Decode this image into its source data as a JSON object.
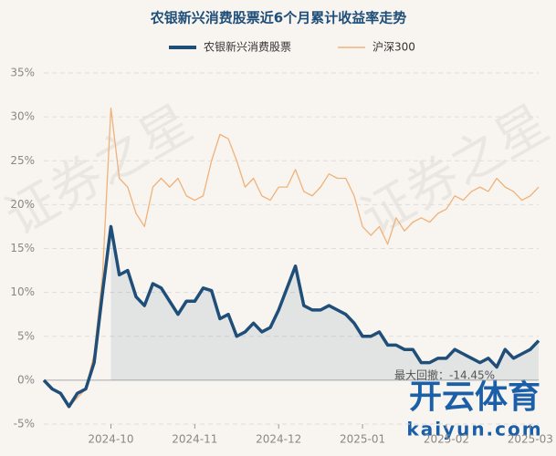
{
  "chart_data": {
    "type": "line",
    "title": "农银新兴消费股票近6个月累计收益率走势",
    "categories": [
      null,
      null,
      null,
      null,
      null,
      null,
      null,
      null,
      "2024-10",
      null,
      null,
      null,
      null,
      null,
      null,
      null,
      null,
      null,
      "2024-11",
      null,
      null,
      null,
      null,
      null,
      null,
      null,
      null,
      null,
      "2024-12",
      null,
      null,
      null,
      null,
      null,
      null,
      null,
      null,
      null,
      "2025-01",
      null,
      null,
      null,
      null,
      null,
      null,
      null,
      null,
      null,
      "2025-02",
      null,
      null,
      null,
      null,
      null,
      null,
      null,
      null,
      null,
      "2025-03",
      null
    ],
    "series": [
      {
        "name": "农银新兴消费股票",
        "color": "#1f4e79",
        "values": [
          0,
          -1,
          -1.5,
          -3,
          -1.5,
          -1,
          2,
          10,
          17.5,
          12,
          12.5,
          9.5,
          8.5,
          11,
          10.5,
          9,
          7.5,
          9,
          9,
          10.5,
          10.2,
          7,
          7.5,
          5,
          5.5,
          6.5,
          5.5,
          6,
          8,
          10.5,
          13,
          8.5,
          8,
          8,
          8.5,
          8,
          7.5,
          6.5,
          5,
          5,
          5.5,
          4,
          4,
          3.5,
          3.5,
          2,
          2,
          2.5,
          2.5,
          3.5,
          3,
          2.5,
          2,
          2.5,
          1.5,
          3.5,
          2.5,
          3,
          3.5,
          4.5
        ]
      },
      {
        "name": "沪深300",
        "color": "#f0b27a",
        "values": [
          0,
          -1,
          -1.5,
          -3,
          -2,
          -1,
          3,
          12,
          31,
          23,
          22,
          19,
          17.5,
          22,
          23,
          22,
          23,
          21,
          20.5,
          21,
          25,
          28,
          27.5,
          25,
          22,
          23,
          21,
          20.5,
          22,
          22,
          24,
          21.5,
          21,
          22,
          23.5,
          23,
          23,
          21,
          17.5,
          16.5,
          17.5,
          15.5,
          18.5,
          17,
          18,
          18.5,
          18,
          19,
          19.5,
          21,
          20.5,
          21.5,
          22,
          21.5,
          23,
          22,
          21.5,
          20.5,
          21,
          22
        ]
      }
    ],
    "ylim": [
      -5,
      35
    ],
    "yticks": [
      {
        "value": -5,
        "label": "-5%"
      },
      {
        "value": 0,
        "label": "0%"
      },
      {
        "value": 5,
        "label": "5%"
      },
      {
        "value": 10,
        "label": "10%"
      },
      {
        "value": 15,
        "label": "15%"
      },
      {
        "value": 20,
        "label": "20%"
      },
      {
        "value": 25,
        "label": "25%"
      },
      {
        "value": 30,
        "label": "30%"
      },
      {
        "value": 35,
        "label": "35%"
      }
    ],
    "grid": true,
    "annotation": "最大回撤：-14.45%",
    "watermarks": [
      "证券之星",
      "证券之星",
      "开云体育",
      "kaiyun.com"
    ]
  }
}
